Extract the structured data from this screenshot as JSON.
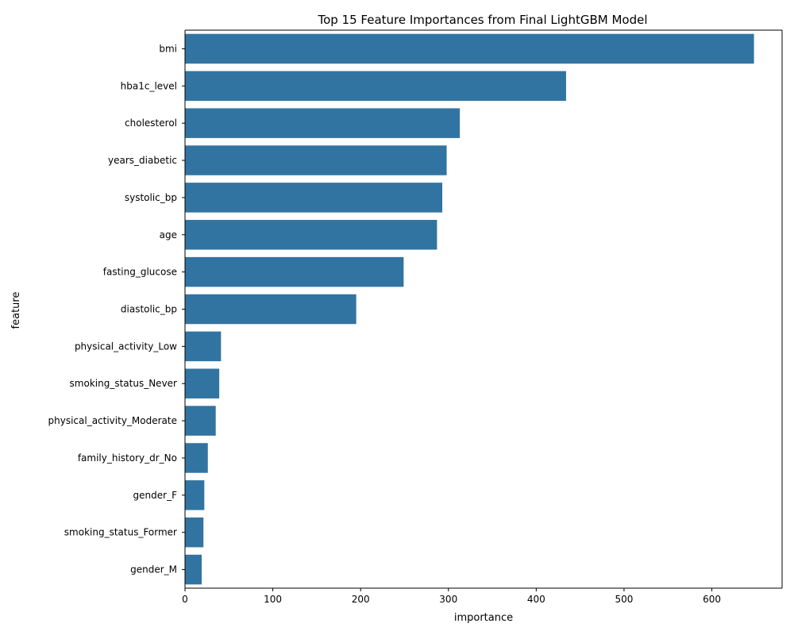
{
  "chart_data": {
    "type": "bar",
    "orientation": "horizontal",
    "title": "Top 15 Feature Importances from Final LightGBM Model",
    "xlabel": "importance",
    "ylabel": "feature",
    "categories": [
      "bmi",
      "hba1c_level",
      "cholesterol",
      "years_diabetic",
      "systolic_bp",
      "age",
      "fasting_glucose",
      "diastolic_bp",
      "physical_activity_Low",
      "smoking_status_Never",
      "physical_activity_Moderate",
      "family_history_dr_No",
      "gender_F",
      "smoking_status_Former",
      "gender_M"
    ],
    "values": [
      648,
      434,
      313,
      298,
      293,
      287,
      249,
      195,
      41,
      39,
      35,
      26,
      22,
      21,
      19
    ],
    "xlim": [
      0,
      680
    ],
    "xticks": [
      0,
      100,
      200,
      300,
      400,
      500,
      600
    ],
    "grid": false,
    "bar_color": "#3274a1"
  }
}
